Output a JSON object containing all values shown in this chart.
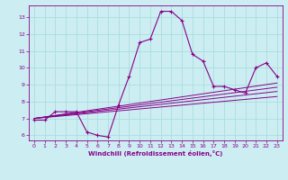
{
  "xlabel": "Windchill (Refroidissement éolien,°C)",
  "xlim": [
    -0.5,
    23.5
  ],
  "ylim": [
    5.7,
    13.7
  ],
  "xticks": [
    0,
    1,
    2,
    3,
    4,
    5,
    6,
    7,
    8,
    9,
    10,
    11,
    12,
    13,
    14,
    15,
    16,
    17,
    18,
    19,
    20,
    21,
    22,
    23
  ],
  "yticks": [
    6,
    7,
    8,
    9,
    10,
    11,
    12,
    13
  ],
  "bg_color": "#cceef2",
  "grid_color": "#aadddd",
  "line_color": "#880088",
  "curve1_x": [
    0,
    1,
    2,
    3,
    4,
    5,
    6,
    7,
    8,
    9,
    10,
    11,
    12,
    13,
    14,
    15,
    16,
    17,
    18,
    19,
    20,
    21,
    22,
    23
  ],
  "curve1_y": [
    6.9,
    6.9,
    7.4,
    7.4,
    7.4,
    6.2,
    6.0,
    5.9,
    7.8,
    9.5,
    11.5,
    11.7,
    13.35,
    13.35,
    12.8,
    10.8,
    10.4,
    8.9,
    8.9,
    8.7,
    8.5,
    10.0,
    10.3,
    9.5
  ],
  "line1_x": [
    0,
    23
  ],
  "line1_y": [
    7.0,
    8.6
  ],
  "line2_x": [
    0,
    23
  ],
  "line2_y": [
    7.0,
    8.3
  ],
  "line3_x": [
    0,
    23
  ],
  "line3_y": [
    7.0,
    8.85
  ],
  "line4_x": [
    0,
    23
  ],
  "line4_y": [
    7.0,
    9.1
  ]
}
